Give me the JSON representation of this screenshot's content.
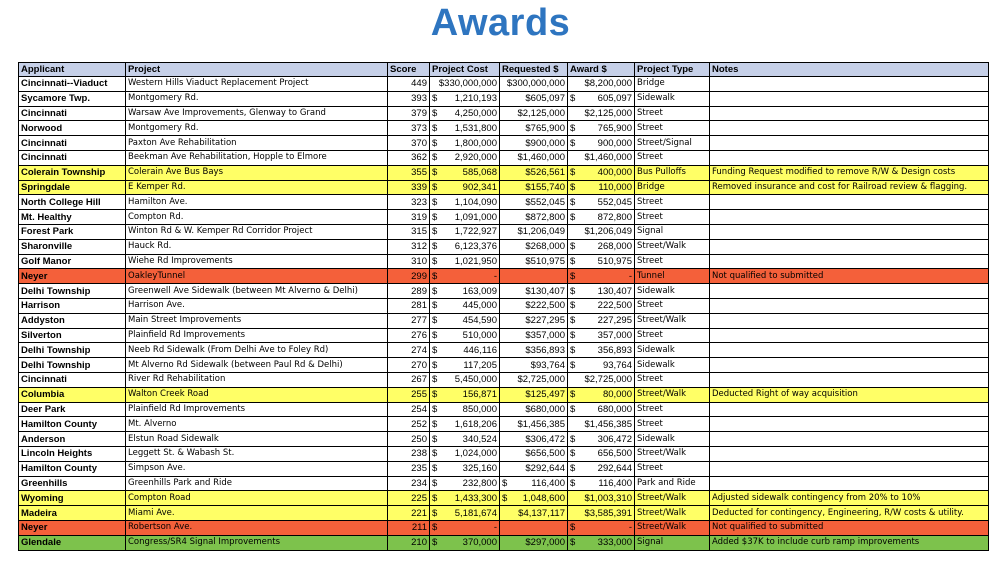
{
  "title": "Awards",
  "row_colors": {
    "yellow": "#FFFF66",
    "red": "#F4603A",
    "green": "#7DC24C",
    "header": "#C6D0E8",
    "title": "#2E75C0"
  },
  "headers": [
    "Applicant",
    "Project",
    "Score",
    "Project Cost",
    "Requested $",
    "Award $",
    "Project Type",
    "Notes"
  ],
  "rows": [
    {
      "applicant": "Cincinnati--Viaduct",
      "project": "Western Hills Viaduct Replacement Project",
      "score": "449",
      "cost_cur": "",
      "cost": "$330,000,000",
      "req_cur": "",
      "req": "$300,000,000",
      "award_cur": "",
      "award": "$8,200,000",
      "type": "Bridge",
      "notes": "",
      "hl": ""
    },
    {
      "applicant": "Sycamore Twp.",
      "project": "Montgomery Rd.",
      "score": "393",
      "cost_cur": "$",
      "cost": "1,210,193",
      "req_cur": "",
      "req": "$605,097",
      "award_cur": "$",
      "award": "605,097",
      "type": "Sidewalk",
      "notes": "",
      "hl": ""
    },
    {
      "applicant": "Cincinnati",
      "project": "Warsaw Ave Improvements, Glenway to Grand",
      "score": "379",
      "cost_cur": "$",
      "cost": "4,250,000",
      "req_cur": "",
      "req": "$2,125,000",
      "award_cur": "",
      "award": "$2,125,000",
      "type": "Street",
      "notes": "",
      "hl": ""
    },
    {
      "applicant": "Norwood",
      "project": "Montgomery Rd.",
      "score": "373",
      "cost_cur": "$",
      "cost": "1,531,800",
      "req_cur": "",
      "req": "$765,900",
      "award_cur": "$",
      "award": "765,900",
      "type": "Street",
      "notes": "",
      "hl": ""
    },
    {
      "applicant": "Cincinnati",
      "project": "Paxton Ave Rehabilitation",
      "score": "370",
      "cost_cur": "$",
      "cost": "1,800,000",
      "req_cur": "",
      "req": "$900,000",
      "award_cur": "$",
      "award": "900,000",
      "type": "Street/Signal",
      "notes": "",
      "hl": ""
    },
    {
      "applicant": "Cincinnati",
      "project": "Beekman Ave Rehabilitation, Hopple to Elmore",
      "score": "362",
      "cost_cur": "$",
      "cost": "2,920,000",
      "req_cur": "",
      "req": "$1,460,000",
      "award_cur": "",
      "award": "$1,460,000",
      "type": "Street",
      "notes": "",
      "hl": ""
    },
    {
      "applicant": "Colerain Township",
      "project": "Colerain Ave Bus Bays",
      "score": "355",
      "cost_cur": "$",
      "cost": "585,068",
      "req_cur": "",
      "req": "$526,561",
      "award_cur": "$",
      "award": "400,000",
      "type": "Bus Pulloffs",
      "notes": "Funding Request modified to remove R/W & Design costs",
      "hl": "yellow"
    },
    {
      "applicant": "Springdale",
      "project": "E Kemper Rd.",
      "score": "339",
      "cost_cur": "$",
      "cost": "902,341",
      "req_cur": "",
      "req": "$155,740",
      "award_cur": "$",
      "award": "110,000",
      "type": "Bridge",
      "notes": "Removed insurance and cost for Railroad review & flagging.",
      "hl": "yellow"
    },
    {
      "applicant": "North College Hill",
      "project": "Hamilton Ave.",
      "score": "323",
      "cost_cur": "$",
      "cost": "1,104,090",
      "req_cur": "",
      "req": "$552,045",
      "award_cur": "$",
      "award": "552,045",
      "type": "Street",
      "notes": "",
      "hl": ""
    },
    {
      "applicant": "Mt. Healthy",
      "project": "Compton Rd.",
      "score": "319",
      "cost_cur": "$",
      "cost": "1,091,000",
      "req_cur": "",
      "req": "$872,800",
      "award_cur": "$",
      "award": "872,800",
      "type": "Street",
      "notes": "",
      "hl": ""
    },
    {
      "applicant": "Forest Park",
      "project": "Winton Rd & W. Kemper Rd Corridor Project",
      "score": "315",
      "cost_cur": "$",
      "cost": "1,722,927",
      "req_cur": "",
      "req": "$1,206,049",
      "award_cur": "",
      "award": "$1,206,049",
      "type": "Signal",
      "notes": "",
      "hl": ""
    },
    {
      "applicant": "Sharonville",
      "project": "Hauck Rd.",
      "score": "312",
      "cost_cur": "$",
      "cost": "6,123,376",
      "req_cur": "",
      "req": "$268,000",
      "award_cur": "$",
      "award": "268,000",
      "type": "Street/Walk",
      "notes": "",
      "hl": ""
    },
    {
      "applicant": "Golf Manor",
      "project": "Wiehe Rd Improvements",
      "score": "310",
      "cost_cur": "$",
      "cost": "1,021,950",
      "req_cur": "",
      "req": "$510,975",
      "award_cur": "$",
      "award": "510,975",
      "type": "Street",
      "notes": "",
      "hl": ""
    },
    {
      "applicant": "Neyer",
      "project": "OakleyTunnel",
      "score": "299",
      "cost_cur": "$",
      "cost": "-",
      "req_cur": "",
      "req": "",
      "award_cur": "$",
      "award": "-",
      "type": "Tunnel",
      "notes": "Not qualified to submitted",
      "hl": "red"
    },
    {
      "applicant": "Delhi Township",
      "project": "Greenwell Ave Sidewalk (between Mt Alverno & Delhi)",
      "score": "289",
      "cost_cur": "$",
      "cost": "163,009",
      "req_cur": "",
      "req": "$130,407",
      "award_cur": "$",
      "award": "130,407",
      "type": "Sidewalk",
      "notes": "",
      "hl": ""
    },
    {
      "applicant": "Harrison",
      "project": "Harrison Ave.",
      "score": "281",
      "cost_cur": "$",
      "cost": "445,000",
      "req_cur": "",
      "req": "$222,500",
      "award_cur": "$",
      "award": "222,500",
      "type": "Street",
      "notes": "",
      "hl": ""
    },
    {
      "applicant": "Addyston",
      "project": "Main Street Improvements",
      "score": "277",
      "cost_cur": "$",
      "cost": "454,590",
      "req_cur": "",
      "req": "$227,295",
      "award_cur": "$",
      "award": "227,295",
      "type": "Street/Walk",
      "notes": "",
      "hl": ""
    },
    {
      "applicant": "Silverton",
      "project": "Plainfield Rd Improvements",
      "score": "276",
      "cost_cur": "$",
      "cost": "510,000",
      "req_cur": "",
      "req": "$357,000",
      "award_cur": "$",
      "award": "357,000",
      "type": "Street",
      "notes": "",
      "hl": ""
    },
    {
      "applicant": "Delhi Township",
      "project": "Neeb Rd Sidewalk (From Delhi Ave to Foley Rd)",
      "score": "274",
      "cost_cur": "$",
      "cost": "446,116",
      "req_cur": "",
      "req": "$356,893",
      "award_cur": "$",
      "award": "356,893",
      "type": "Sidewalk",
      "notes": "",
      "hl": ""
    },
    {
      "applicant": "Delhi Township",
      "project": "Mt Alverno Rd Sidewalk (between Paul Rd & Delhi)",
      "score": "270",
      "cost_cur": "$",
      "cost": "117,205",
      "req_cur": "",
      "req": "$93,764",
      "award_cur": "$",
      "award": "93,764",
      "type": "Sidewalk",
      "notes": "",
      "hl": ""
    },
    {
      "applicant": "Cincinnati",
      "project": "River Rd Rehabilitation",
      "score": "267",
      "cost_cur": "$",
      "cost": "5,450,000",
      "req_cur": "",
      "req": "$2,725,000",
      "award_cur": "",
      "award": "$2,725,000",
      "type": "Street",
      "notes": "",
      "hl": ""
    },
    {
      "applicant": "Columbia",
      "project": "Walton Creek Road",
      "score": "255",
      "cost_cur": "$",
      "cost": "156,871",
      "req_cur": "",
      "req": "$125,497",
      "award_cur": "$",
      "award": "80,000",
      "type": "Street/Walk",
      "notes": "Deducted Right of way acquisition",
      "hl": "yellow"
    },
    {
      "applicant": "Deer Park",
      "project": "Plainfield Rd Improvements",
      "score": "254",
      "cost_cur": "$",
      "cost": "850,000",
      "req_cur": "",
      "req": "$680,000",
      "award_cur": "$",
      "award": "680,000",
      "type": "Street",
      "notes": "",
      "hl": ""
    },
    {
      "applicant": "Hamilton County",
      "project": "Mt. Alverno",
      "score": "252",
      "cost_cur": "$",
      "cost": "1,618,206",
      "req_cur": "",
      "req": "$1,456,385",
      "award_cur": "",
      "award": "$1,456,385",
      "type": "Street",
      "notes": "",
      "hl": ""
    },
    {
      "applicant": "Anderson",
      "project": "Elstun Road Sidewalk",
      "score": "250",
      "cost_cur": "$",
      "cost": "340,524",
      "req_cur": "",
      "req": "$306,472",
      "award_cur": "$",
      "award": "306,472",
      "type": "Sidewalk",
      "notes": "",
      "hl": ""
    },
    {
      "applicant": "Lincoln Heights",
      "project": "Leggett St. & Wabash St.",
      "score": "238",
      "cost_cur": "$",
      "cost": "1,024,000",
      "req_cur": "",
      "req": "$656,500",
      "award_cur": "$",
      "award": "656,500",
      "type": "Street/Walk",
      "notes": "",
      "hl": ""
    },
    {
      "applicant": "Hamilton County",
      "project": "Simpson Ave.",
      "score": "235",
      "cost_cur": "$",
      "cost": "325,160",
      "req_cur": "",
      "req": "$292,644",
      "award_cur": "$",
      "award": "292,644",
      "type": "Street",
      "notes": "",
      "hl": ""
    },
    {
      "applicant": "Greenhills",
      "project": "Greenhills Park and Ride",
      "score": "234",
      "cost_cur": "$",
      "cost": "232,800",
      "req_cur": "$",
      "req": "116,400",
      "award_cur": "$",
      "award": "116,400",
      "type": "Park and Ride",
      "notes": "",
      "hl": ""
    },
    {
      "applicant": "Wyoming",
      "project": "Compton Road",
      "score": "225",
      "cost_cur": "$",
      "cost": "1,433,300",
      "req_cur": "$",
      "req": "1,048,600",
      "award_cur": "",
      "award": "$1,003,310",
      "type": "Street/Walk",
      "notes": "Adjusted sidewalk contingency from 20% to 10%",
      "hl": "yellow"
    },
    {
      "applicant": "Madeira",
      "project": "Miami Ave.",
      "score": "221",
      "cost_cur": "$",
      "cost": "5,181,674",
      "req_cur": "",
      "req": "$4,137,117",
      "award_cur": "",
      "award": "$3,585,391",
      "type": "Street/Walk",
      "notes": "Deducted for contingency, Engineering, R/W costs & utility.",
      "hl": "yellow"
    },
    {
      "applicant": "Neyer",
      "project": "Robertson Ave.",
      "score": "211",
      "cost_cur": "$",
      "cost": "-",
      "req_cur": "",
      "req": "",
      "award_cur": "$",
      "award": "-",
      "type": "Street/Walk",
      "notes": "Not qualified to submitted",
      "hl": "red"
    },
    {
      "applicant": "Glendale",
      "project": "Congress/SR4 Signal Improvements",
      "score": "210",
      "cost_cur": "$",
      "cost": "370,000",
      "req_cur": "",
      "req": "$297,000",
      "award_cur": "$",
      "award": "333,000",
      "type": "Signal",
      "notes": "Added $37K to include curb ramp improvements",
      "hl": "green"
    }
  ]
}
